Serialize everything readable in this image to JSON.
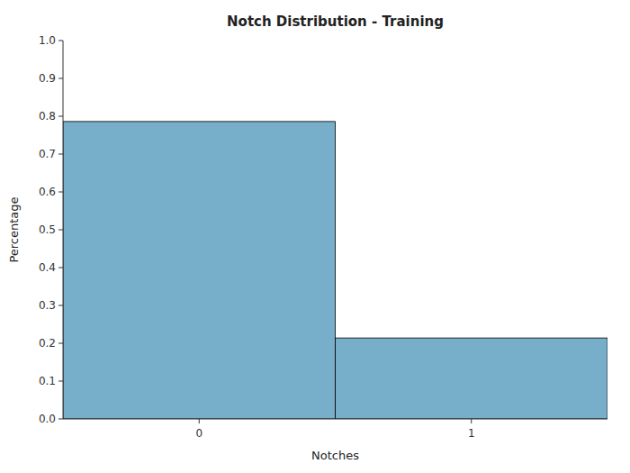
{
  "chart_data": {
    "type": "bar",
    "title": "Notch Distribution - Training",
    "xlabel": "Notches",
    "ylabel": "Percentage",
    "x": [
      0,
      1
    ],
    "values": [
      0.786,
      0.214
    ],
    "color": "#77AECA",
    "xlim": [
      -0.5,
      1.5
    ],
    "xticks": [
      0,
      1
    ],
    "ylim": [
      0,
      1
    ],
    "yticks": [
      {
        "value": 0,
        "label": "0.0"
      },
      0.1,
      0.2,
      0.3,
      0.4,
      0.5,
      0.6,
      0.7,
      0.8,
      0.9,
      {
        "value": 1.0,
        "label": "1.0"
      }
    ],
    "grid": false
  }
}
